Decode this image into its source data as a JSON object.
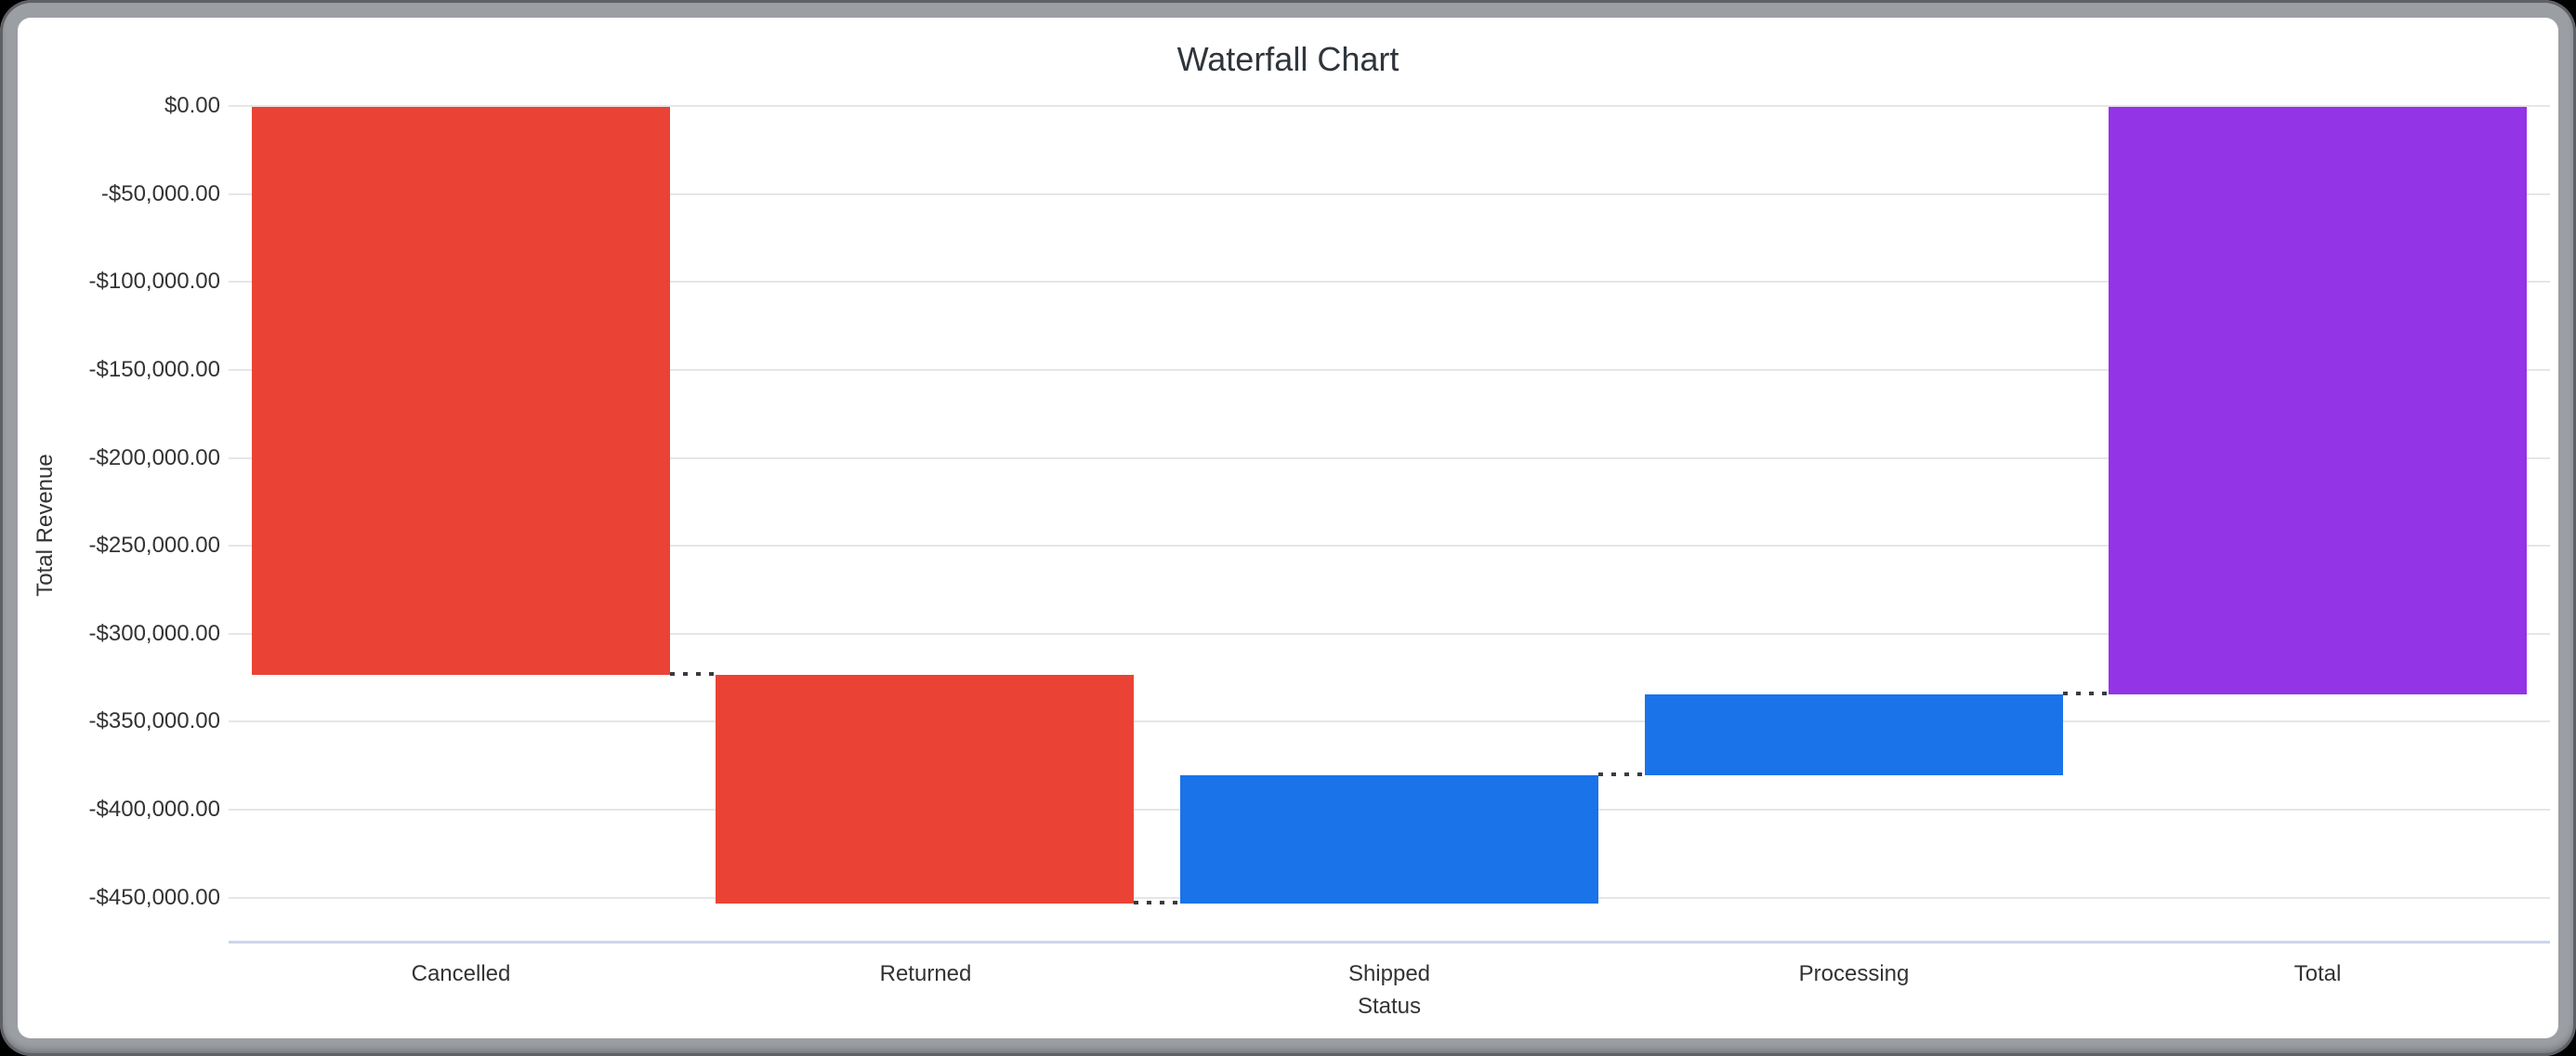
{
  "chart_data": {
    "type": "waterfall",
    "title": "Waterfall Chart",
    "xlabel": "Status",
    "ylabel": "Total Revenue",
    "categories": [
      "Cancelled",
      "Returned",
      "Shipped",
      "Processing",
      "Total"
    ],
    "series": [
      {
        "name": "Cancelled",
        "role": "decrease",
        "delta": -323000,
        "start": 0,
        "end": -323000
      },
      {
        "name": "Returned",
        "role": "decrease",
        "delta": -129600,
        "start": -323000,
        "end": -452600
      },
      {
        "name": "Shipped",
        "role": "increase",
        "delta": 72700,
        "start": -452600,
        "end": -379900
      },
      {
        "name": "Processing",
        "role": "increase",
        "delta": 45800,
        "start": -379900,
        "end": -334100
      },
      {
        "name": "Total",
        "role": "total",
        "delta": -334100,
        "start": 0,
        "end": -334100
      }
    ],
    "y_axis": {
      "range": [
        -475000,
        0
      ],
      "ticks": [
        {
          "value": 0,
          "label": "$0.00"
        },
        {
          "value": -50000,
          "label": "-$50,000.00"
        },
        {
          "value": -100000,
          "label": "-$100,000.00"
        },
        {
          "value": -150000,
          "label": "-$150,000.00"
        },
        {
          "value": -200000,
          "label": "-$200,000.00"
        },
        {
          "value": -250000,
          "label": "-$250,000.00"
        },
        {
          "value": -300000,
          "label": "-$300,000.00"
        },
        {
          "value": -350000,
          "label": "-$350,000.00"
        },
        {
          "value": -400000,
          "label": "-$400,000.00"
        },
        {
          "value": -450000,
          "label": "-$450,000.00"
        }
      ]
    },
    "grid": true,
    "legend": false,
    "connector_style": "dotted"
  },
  "colors": {
    "decrease": "#EA4335",
    "increase": "#1A73E8",
    "total": "#9334E6",
    "gridline": "#E6E6E6",
    "axis_line": "#CCD6EB",
    "connector": "#383C42",
    "tick_text": "#333333",
    "title_text": "#2F353B",
    "frame": "#9B9EA3",
    "background": "#000000",
    "plot_background": "#FFFFFF"
  }
}
